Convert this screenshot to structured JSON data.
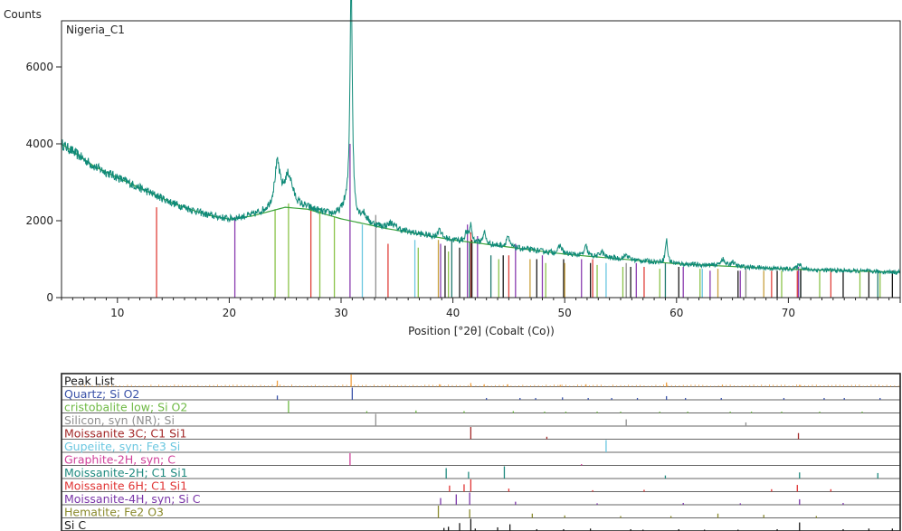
{
  "chart_data": {
    "type": "line",
    "sample_label": "Nigeria_C1",
    "ylabel": "Counts",
    "xlabel": "Position [°2θ] (Cobalt (Co))",
    "xlim": [
      5,
      80
    ],
    "ylim": [
      0,
      7200
    ],
    "xticks": [
      10,
      20,
      30,
      40,
      50,
      60,
      70
    ],
    "yticks": [
      0,
      2000,
      4000,
      6000
    ],
    "grid": false,
    "pattern_color": "#0f8a78",
    "background_color": "#3aa23a",
    "background_fit": [
      [
        5,
        4000
      ],
      [
        8,
        3400
      ],
      [
        12,
        2850
      ],
      [
        15,
        2450
      ],
      [
        18,
        2150
      ],
      [
        20,
        2040
      ],
      [
        22,
        2120
      ],
      [
        25,
        2350
      ],
      [
        27,
        2300
      ],
      [
        30,
        2050
      ],
      [
        34,
        1800
      ],
      [
        40,
        1500
      ],
      [
        50,
        1130
      ],
      [
        60,
        880
      ],
      [
        70,
        740
      ],
      [
        80,
        660
      ]
    ],
    "pattern_peaks": [
      [
        24.3,
        1100,
        0.3
      ],
      [
        25.3,
        800,
        0.45
      ],
      [
        30.9,
        6400,
        0.12
      ],
      [
        30.4,
        300,
        0.5
      ],
      [
        32.0,
        200,
        0.3
      ],
      [
        34.5,
        150,
        0.4
      ],
      [
        38.8,
        250,
        0.15
      ],
      [
        41.2,
        220,
        0.15
      ],
      [
        41.6,
        450,
        0.12
      ],
      [
        42.8,
        300,
        0.15
      ],
      [
        44.9,
        280,
        0.15
      ],
      [
        49.6,
        200,
        0.2
      ],
      [
        51.9,
        250,
        0.15
      ],
      [
        53.3,
        150,
        0.2
      ],
      [
        55.5,
        120,
        0.2
      ],
      [
        59.1,
        600,
        0.12
      ],
      [
        64.1,
        180,
        0.2
      ],
      [
        65.0,
        120,
        0.2
      ],
      [
        71.0,
        150,
        0.2
      ]
    ],
    "reference_lines": [
      {
        "color": "#e0403a",
        "lines": [
          [
            13.5,
            2350
          ],
          [
            27.3,
            2350
          ],
          [
            34.2,
            1400
          ],
          [
            41.6,
            1700
          ],
          [
            45.0,
            1100
          ],
          [
            52.5,
            1000
          ],
          [
            57.1,
            800
          ],
          [
            68.5,
            700
          ],
          [
            70.8,
            700
          ],
          [
            73.8,
            700
          ]
        ]
      },
      {
        "color": "#8a3cb0",
        "lines": [
          [
            20.5,
            2100
          ],
          [
            30.8,
            4000
          ],
          [
            38.9,
            1400
          ],
          [
            41.3,
            1900
          ],
          [
            42.2,
            1600
          ],
          [
            45.6,
            1400
          ],
          [
            48.0,
            1100
          ],
          [
            51.5,
            1000
          ],
          [
            56.4,
            900
          ],
          [
            60.6,
            800
          ],
          [
            63.0,
            700
          ],
          [
            65.7,
            700
          ],
          [
            70.9,
            800
          ]
        ]
      },
      {
        "color": "#8bc34a",
        "lines": [
          [
            24.1,
            2300
          ],
          [
            25.3,
            2450
          ],
          [
            28.1,
            2250
          ],
          [
            29.4,
            2100
          ],
          [
            36.9,
            1300
          ],
          [
            39.6,
            1200
          ],
          [
            44.1,
            1000
          ],
          [
            48.3,
            900
          ],
          [
            52.9,
            850
          ],
          [
            55.2,
            800
          ],
          [
            58.5,
            750
          ],
          [
            62.1,
            750
          ],
          [
            66.2,
            700
          ],
          [
            69.4,
            700
          ],
          [
            72.8,
            700
          ],
          [
            76.4,
            700
          ],
          [
            78.2,
            700
          ]
        ]
      },
      {
        "color": "#8f8f8f",
        "lines": [
          [
            33.1,
            2150
          ],
          [
            55.5,
            900
          ],
          [
            66.2,
            750
          ]
        ]
      },
      {
        "color": "#6bc7e0",
        "lines": [
          [
            31.9,
            1900
          ],
          [
            36.6,
            1500
          ],
          [
            53.7,
            900
          ],
          [
            62.3,
            750
          ]
        ]
      },
      {
        "color": "#1f7a6f",
        "lines": [
          [
            39.9,
            1500
          ],
          [
            41.5,
            1450
          ],
          [
            43.4,
            1100
          ],
          [
            59.0,
            900
          ],
          [
            71.1,
            700
          ],
          [
            78.0,
            700
          ]
        ]
      },
      {
        "color": "#1a1a1a",
        "lines": [
          [
            39.3,
            1350
          ],
          [
            40.6,
            1300
          ],
          [
            41.7,
            1500
          ],
          [
            44.5,
            1100
          ],
          [
            47.5,
            1000
          ],
          [
            49.9,
            1000
          ],
          [
            52.3,
            900
          ],
          [
            55.9,
            800
          ],
          [
            60.2,
            800
          ],
          [
            65.5,
            700
          ],
          [
            69.0,
            700
          ],
          [
            71.1,
            750
          ],
          [
            74.9,
            700
          ],
          [
            77.2,
            700
          ],
          [
            79.3,
            700
          ]
        ]
      },
      {
        "color": "#c9a13e",
        "lines": [
          [
            38.7,
            1500
          ],
          [
            46.9,
            1000
          ],
          [
            50.0,
            900
          ],
          [
            63.7,
            750
          ],
          [
            67.8,
            700
          ]
        ]
      }
    ],
    "stick_panel": {
      "rows": [
        {
          "name": "Peak List",
          "color": "#1a1a1a",
          "stick_color": "#f0a040",
          "sticks": [
            [
              24.3,
              0.5
            ],
            [
              30.9,
              1.0
            ],
            [
              38.8,
              0.2
            ],
            [
              41.6,
              0.3
            ],
            [
              42.8,
              0.2
            ],
            [
              44.9,
              0.2
            ],
            [
              49.6,
              0.15
            ],
            [
              51.9,
              0.2
            ],
            [
              59.1,
              0.35
            ],
            [
              64.1,
              0.15
            ],
            [
              71.0,
              0.15
            ]
          ],
          "noise": true
        },
        {
          "name": "Quartz; Si O2",
          "color": "#3a52a8",
          "stick_color": "#3a52a8",
          "sticks": [
            [
              24.3,
              0.35
            ],
            [
              31.0,
              1.0
            ],
            [
              43.0,
              0.15
            ],
            [
              46.0,
              0.15
            ],
            [
              47.4,
              0.15
            ],
            [
              49.8,
              0.2
            ],
            [
              52.1,
              0.15
            ],
            [
              54.2,
              0.15
            ],
            [
              56.5,
              0.15
            ],
            [
              59.1,
              0.3
            ],
            [
              60.8,
              0.15
            ],
            [
              64.0,
              0.15
            ],
            [
              69.6,
              0.15
            ],
            [
              73.2,
              0.15
            ],
            [
              75.0,
              0.15
            ],
            [
              78.2,
              0.15
            ]
          ]
        },
        {
          "name": "cristobalite low; Si O2",
          "color": "#6fba45",
          "stick_color": "#6fba45",
          "sticks": [
            [
              25.3,
              1.0
            ],
            [
              32.3,
              0.15
            ],
            [
              36.7,
              0.2
            ],
            [
              41.0,
              0.15
            ],
            [
              45.4,
              0.15
            ],
            [
              48.2,
              0.1
            ],
            [
              50.1,
              0.1
            ],
            [
              52.9,
              0.1
            ],
            [
              55.0,
              0.1
            ],
            [
              58.5,
              0.1
            ],
            [
              61.0,
              0.1
            ],
            [
              64.8,
              0.1
            ],
            [
              66.7,
              0.1
            ],
            [
              69.4,
              0.1
            ],
            [
              72.8,
              0.1
            ],
            [
              76.6,
              0.1
            ]
          ]
        },
        {
          "name": "Silicon, syn (NR); Si",
          "color": "#8f8f8f",
          "stick_color": "#8f8f8f",
          "sticks": [
            [
              33.1,
              1.0
            ],
            [
              55.5,
              0.55
            ],
            [
              66.2,
              0.3
            ]
          ]
        },
        {
          "name": "Moissanite 3C; C1 Si1",
          "color": "#a32828",
          "stick_color": "#a32828",
          "sticks": [
            [
              41.6,
              1.0
            ],
            [
              48.4,
              0.2
            ],
            [
              70.9,
              0.5
            ]
          ]
        },
        {
          "name": "Gupeiite, syn; Fe3 Si",
          "color": "#6bc7e0",
          "stick_color": "#6bc7e0",
          "sticks": [
            [
              53.7,
              1.0
            ]
          ]
        },
        {
          "name": "Graphite-2H, syn; C",
          "color": "#d0409a",
          "stick_color": "#d0409a",
          "sticks": [
            [
              30.8,
              1.0
            ],
            [
              51.5,
              0.05
            ]
          ]
        },
        {
          "name": "Moissanite-2H; C1 Si1",
          "color": "#1f8a7f",
          "stick_color": "#1f8a7f",
          "sticks": [
            [
              39.4,
              0.85
            ],
            [
              41.4,
              0.55
            ],
            [
              44.6,
              1.0
            ],
            [
              59.0,
              0.25
            ],
            [
              71.0,
              0.5
            ],
            [
              78.0,
              0.45
            ]
          ]
        },
        {
          "name": "Moissanite 6H; C1 Si1",
          "color": "#e03434",
          "stick_color": "#e03434",
          "sticks": [
            [
              39.7,
              0.5
            ],
            [
              41.0,
              0.6
            ],
            [
              41.6,
              1.0
            ],
            [
              45.0,
              0.25
            ],
            [
              52.5,
              0.12
            ],
            [
              57.1,
              0.15
            ],
            [
              68.5,
              0.2
            ],
            [
              70.8,
              0.55
            ],
            [
              73.8,
              0.2
            ]
          ]
        },
        {
          "name": "Moissanite-4H, syn; Si C",
          "color": "#7a35a8",
          "stick_color": "#7a35a8",
          "sticks": [
            [
              38.9,
              0.55
            ],
            [
              40.3,
              0.85
            ],
            [
              41.5,
              1.0
            ],
            [
              45.6,
              0.25
            ],
            [
              52.9,
              0.12
            ],
            [
              60.6,
              0.15
            ],
            [
              65.7,
              0.12
            ],
            [
              71.0,
              0.45
            ],
            [
              74.9,
              0.15
            ]
          ]
        },
        {
          "name": "Hematite; Fe2 O3",
          "color": "#8a8a2c",
          "stick_color": "#8a8a2c",
          "sticks": [
            [
              38.7,
              1.0
            ],
            [
              41.5,
              0.7
            ],
            [
              47.1,
              0.35
            ],
            [
              50.0,
              0.2
            ],
            [
              55.0,
              0.15
            ],
            [
              59.5,
              0.15
            ],
            [
              63.7,
              0.35
            ],
            [
              67.8,
              0.25
            ],
            [
              72.5,
              0.15
            ]
          ]
        },
        {
          "name": "Si C",
          "color": "#1a1a1a",
          "stick_color": "#1a1a1a",
          "sticks": [
            [
              39.2,
              0.25
            ],
            [
              39.6,
              0.35
            ],
            [
              40.6,
              0.65
            ],
            [
              41.6,
              1.0
            ],
            [
              42.0,
              0.2
            ],
            [
              44.0,
              0.3
            ],
            [
              45.1,
              0.55
            ],
            [
              47.5,
              0.15
            ],
            [
              49.9,
              0.15
            ],
            [
              52.3,
              0.2
            ],
            [
              55.9,
              0.15
            ],
            [
              57.0,
              0.1
            ],
            [
              60.2,
              0.15
            ],
            [
              62.5,
              0.1
            ],
            [
              65.5,
              0.1
            ],
            [
              69.0,
              0.15
            ],
            [
              71.0,
              0.7
            ],
            [
              74.9,
              0.15
            ],
            [
              77.2,
              0.2
            ],
            [
              79.3,
              0.2
            ]
          ]
        }
      ]
    }
  }
}
